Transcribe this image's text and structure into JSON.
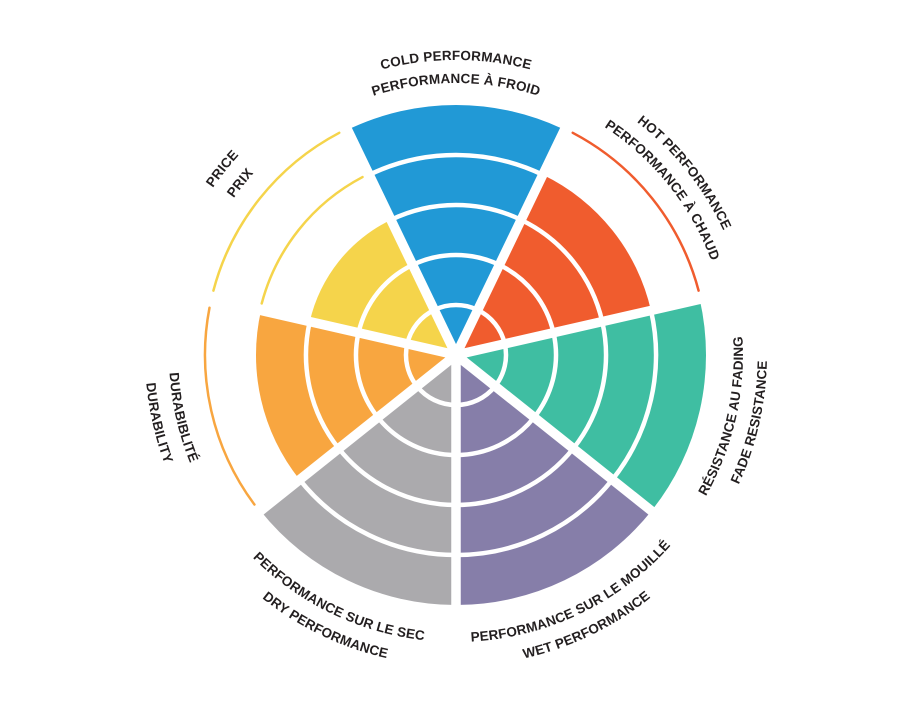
{
  "chart_data": {
    "type": "polar-sector-wheel",
    "title": "",
    "max_value": 5,
    "ring_count": 5,
    "start_angle": "top",
    "direction": "clockwise",
    "grid": "white concentric ring separators inside filled sectors",
    "legend_position": "none",
    "background": "#FFFFFF",
    "label_color": "#231F20",
    "categories": [
      {
        "label_en": "COLD PERFORMANCE",
        "label_fr": "PERFORMANCE À FROID",
        "value": 5,
        "color": "#2199D6"
      },
      {
        "label_en": "HOT PERFORMANCE",
        "label_fr": "PERFORMANCE À CHAUD",
        "value": 4,
        "color": "#F05C2E"
      },
      {
        "label_en": "FADE RESISTANCE",
        "label_fr": "RÉSISTANCE AU FADING",
        "value": 5,
        "color": "#3FBEA2"
      },
      {
        "label_en": "WET PERFORMANCE",
        "label_fr": "PERFORMANCE SUR LE MOUILLÉ",
        "value": 5,
        "color": "#867EA9"
      },
      {
        "label_en": "DRY PERFORMANCE",
        "label_fr": "PERFORMANCE SUR LE SEC",
        "value": 5,
        "color": "#ABAAAD"
      },
      {
        "label_en": "DURABILITY",
        "label_fr": "DURABIBLITÉ",
        "value": 4,
        "color": "#F8A640"
      },
      {
        "label_en": "PRICE",
        "label_fr": "PRIX",
        "value": 3,
        "color": "#F5D44B"
      }
    ]
  }
}
